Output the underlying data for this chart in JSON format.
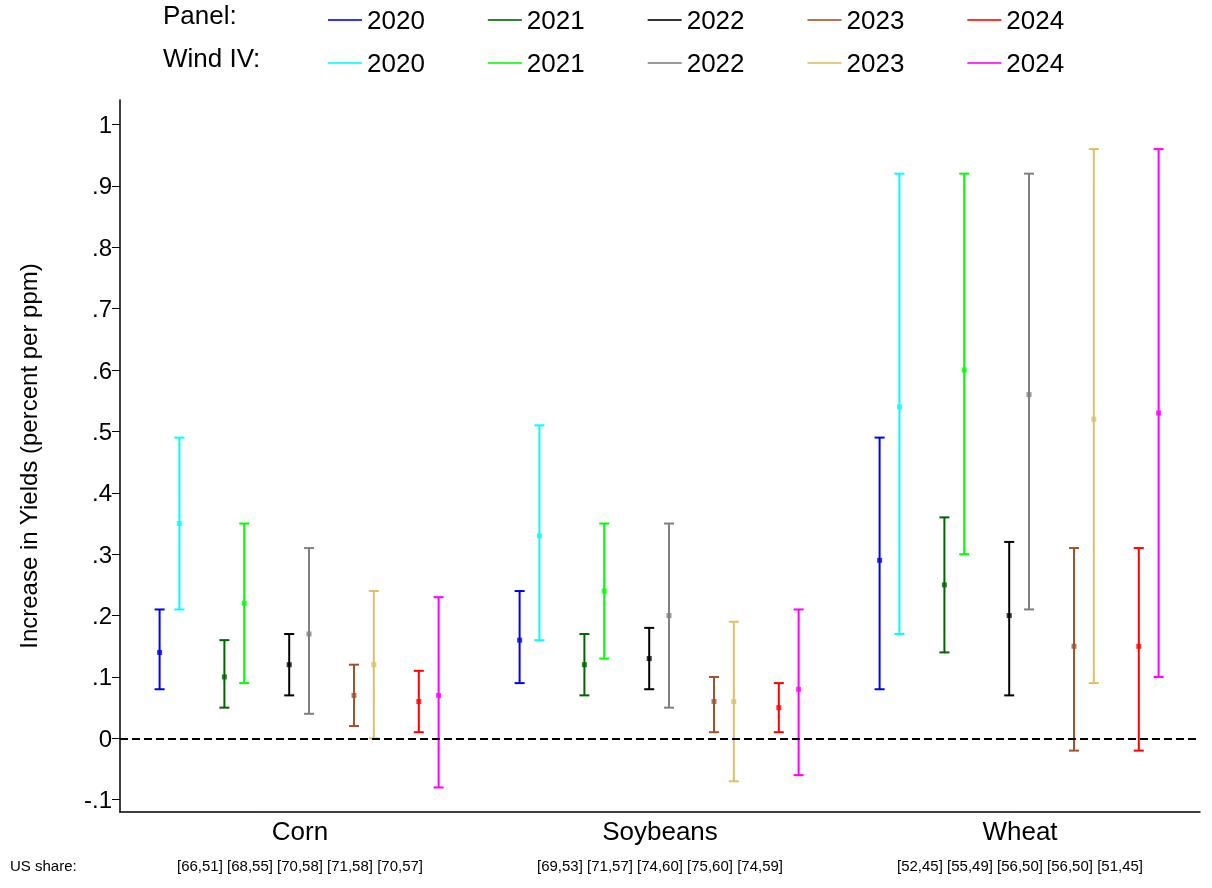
{
  "chart_data": {
    "type": "scatter",
    "ylabel": "Increase in Yields (percent per ppm)",
    "categories": [
      "Corn",
      "Soybeans",
      "Wheat"
    ],
    "ylim": [
      -0.12,
      1.04
    ],
    "yticks": [
      {
        "value": -0.1,
        "label": "-.1"
      },
      0,
      {
        "value": 0.1,
        "label": ".1"
      },
      {
        "value": 0.2,
        "label": ".2"
      },
      {
        "value": 0.3,
        "label": ".3"
      },
      {
        "value": 0.4,
        "label": ".4"
      },
      {
        "value": 0.5,
        "label": ".5"
      },
      {
        "value": 0.6,
        "label": ".6"
      },
      {
        "value": 0.7,
        "label": ".7"
      },
      {
        "value": 0.8,
        "label": ".8"
      },
      {
        "value": 0.9,
        "label": ".9"
      },
      1
    ],
    "grid": false,
    "legend": "top",
    "marker": "square",
    "series": [
      {
        "name": "2020",
        "color": "#0000ff",
        "values": [
          0.14,
          0.16,
          0.29
        ],
        "errors": [
          [
            0.08,
            0.21
          ],
          [
            0.09,
            0.24
          ],
          [
            0.08,
            0.49
          ]
        ]
      },
      {
        "name": "2021",
        "color": "#006400",
        "values": [
          0.1,
          0.12,
          0.25
        ],
        "errors": [
          [
            0.05,
            0.16
          ],
          [
            0.07,
            0.17
          ],
          [
            0.14,
            0.36
          ]
        ]
      },
      {
        "name": "2022",
        "color": "#000000",
        "values": [
          0.12,
          0.13,
          0.2
        ],
        "errors": [
          [
            0.07,
            0.17
          ],
          [
            0.08,
            0.18
          ],
          [
            0.07,
            0.32
          ]
        ]
      },
      {
        "name": "2023",
        "color": "#a0522d",
        "values": [
          0.07,
          0.06,
          0.15
        ],
        "errors": [
          [
            0.02,
            0.12
          ],
          [
            0.01,
            0.1
          ],
          [
            -0.02,
            0.31
          ]
        ]
      },
      {
        "name": "2024",
        "color": "#ff0000",
        "values": [
          0.06,
          0.05,
          0.15
        ],
        "errors": [
          [
            0.01,
            0.11
          ],
          [
            0.01,
            0.09
          ],
          [
            -0.02,
            0.31
          ]
        ]
      },
      {
        "name": "2020",
        "color": "#00ffff",
        "values": [
          0.35,
          0.33,
          0.54
        ],
        "errors": [
          [
            0.21,
            0.49
          ],
          [
            0.16,
            0.51
          ],
          [
            0.17,
            0.92
          ]
        ]
      },
      {
        "name": "2021",
        "color": "#00ff00",
        "values": [
          0.22,
          0.24,
          0.6
        ],
        "errors": [
          [
            0.09,
            0.35
          ],
          [
            0.13,
            0.35
          ],
          [
            0.3,
            0.92
          ]
        ]
      },
      {
        "name": "2022",
        "color": "#808080",
        "values": [
          0.17,
          0.2,
          0.56
        ],
        "errors": [
          [
            0.04,
            0.31
          ],
          [
            0.05,
            0.35
          ],
          [
            0.21,
            0.92
          ]
        ]
      },
      {
        "name": "2023",
        "color": "#dcc068",
        "values": [
          0.12,
          0.06,
          0.52
        ],
        "errors": [
          [
            0.0,
            0.24
          ],
          [
            -0.07,
            0.19
          ],
          [
            0.09,
            0.96
          ]
        ]
      },
      {
        "name": "2024",
        "color": "#ff00ff",
        "values": [
          0.07,
          0.08,
          0.53
        ],
        "errors": [
          [
            -0.08,
            0.23
          ],
          [
            -0.06,
            0.21
          ],
          [
            0.1,
            0.96
          ]
        ]
      }
    ],
    "ref_lines": [
      {
        "axis": "y",
        "value": 0,
        "color": "#000000",
        "line_style": "dashed"
      }
    ],
    "annotations": [
      "Panel:",
      "Wind IV:",
      "US share:",
      "[66,51] [68,55] [70,58] [71,58] [70,57]",
      "[69,53] [71,57] [74,60] [75,60] [74,59]",
      "[52,45] [55,49] [56,50] [56,50] [51,45]"
    ]
  }
}
